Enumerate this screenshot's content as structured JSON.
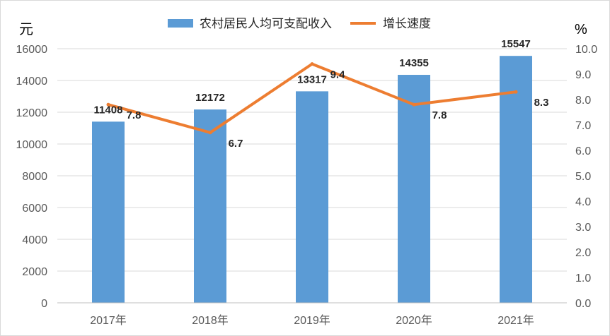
{
  "chart_data": {
    "type": "bar",
    "categories": [
      "2017年",
      "2018年",
      "2019年",
      "2020年",
      "2021年"
    ],
    "series": [
      {
        "name": "农村居民人均可支配收入",
        "type": "bar",
        "axis": "left",
        "values": [
          11408,
          12172,
          13317,
          14355,
          15547
        ],
        "color": "#5B9BD5"
      },
      {
        "name": "增长速度",
        "type": "line",
        "axis": "right",
        "values": [
          7.8,
          6.7,
          9.4,
          7.8,
          8.3
        ],
        "color": "#ED7D31"
      }
    ],
    "y_left": {
      "unit": "元",
      "ylim": [
        0,
        16000
      ],
      "ticks": [
        "0",
        "2000",
        "4000",
        "6000",
        "8000",
        "10000",
        "12000",
        "14000",
        "16000"
      ]
    },
    "y_right": {
      "unit": "%",
      "ylim": [
        0,
        10
      ],
      "ticks": [
        "0.0",
        "1.0",
        "2.0",
        "3.0",
        "4.0",
        "5.0",
        "6.0",
        "7.0",
        "8.0",
        "9.0",
        "10.0"
      ]
    },
    "grid": true,
    "legend": "top"
  }
}
